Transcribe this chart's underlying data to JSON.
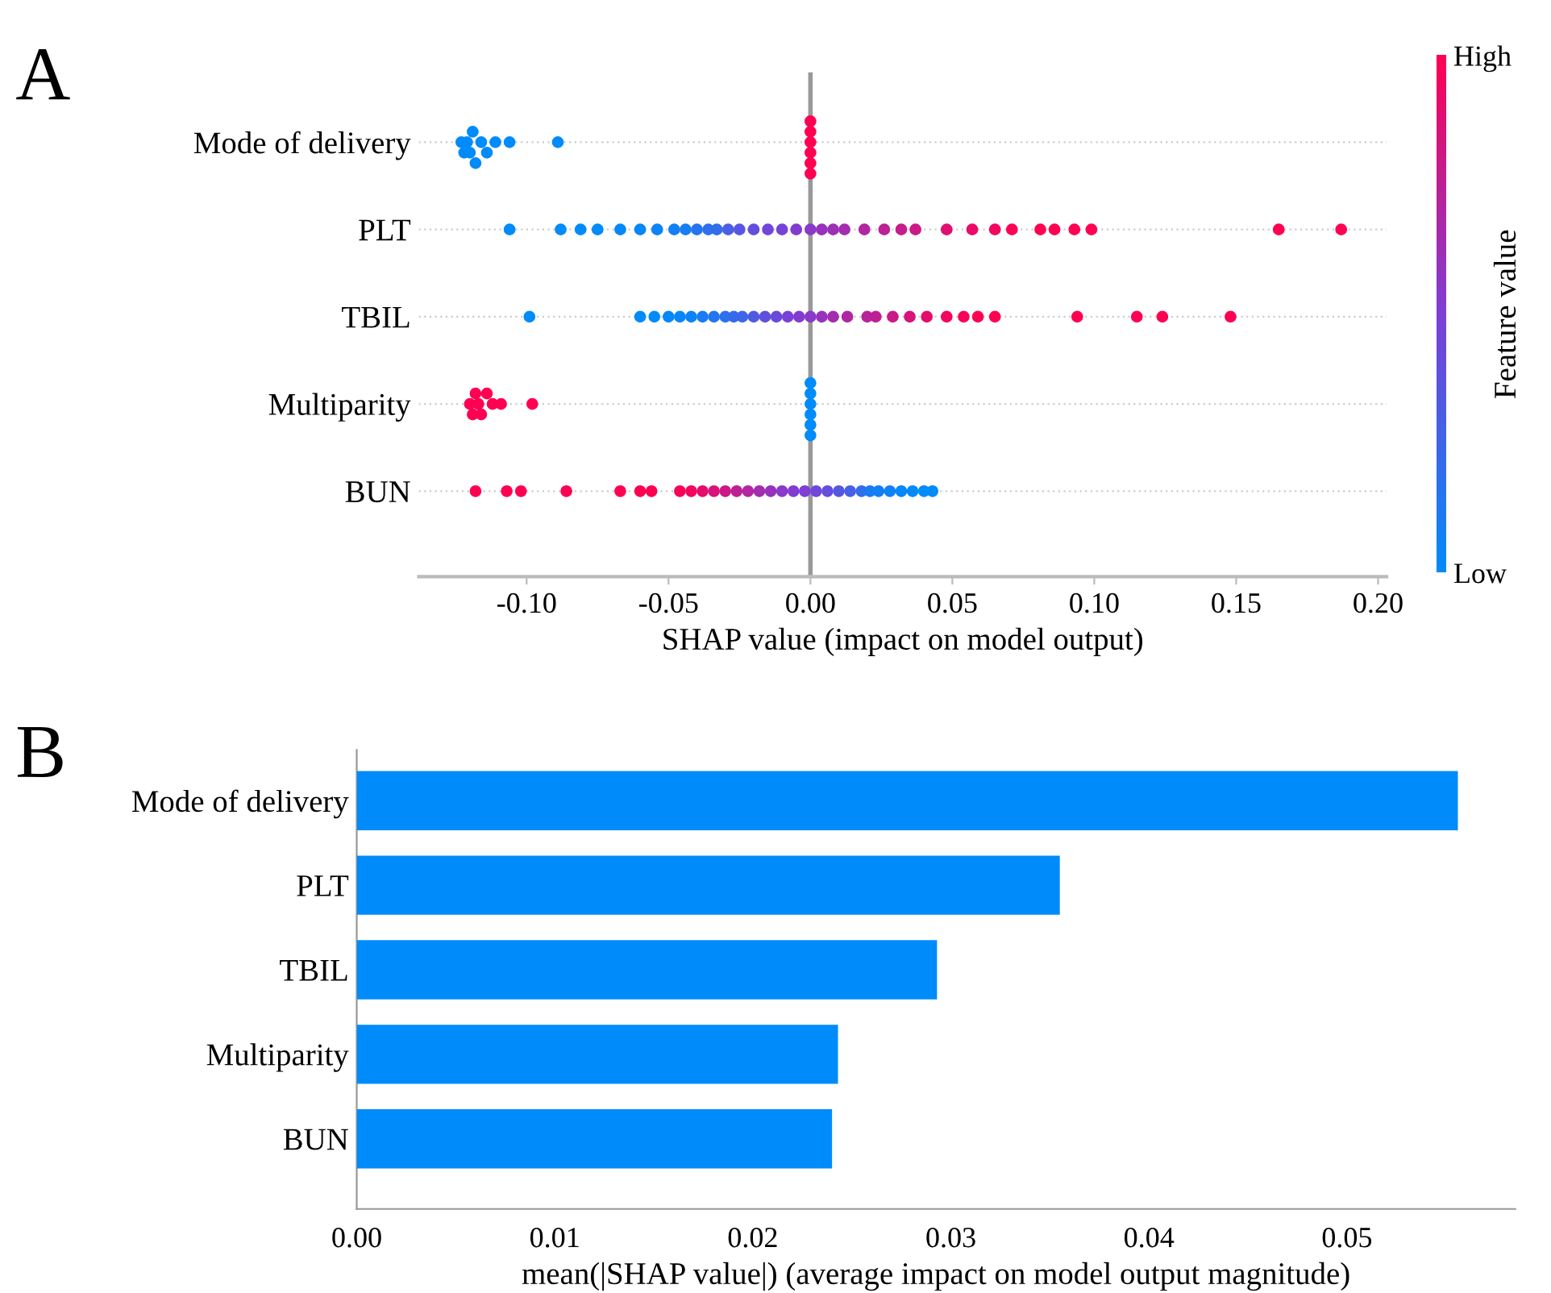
{
  "chart_data": [
    {
      "type": "scatter",
      "title": "A",
      "orientation": "horizontal",
      "xlabel": "SHAP value (impact on model output)",
      "clabel": "Feature value",
      "clim": [
        0,
        1
      ],
      "cticks": [
        {
          "value": 0,
          "label": "Low"
        },
        {
          "value": 1,
          "label": "High"
        }
      ],
      "grid": "y",
      "xlim": [
        -0.138,
        0.203
      ],
      "xticks": [
        {
          "value": -0.1,
          "label": "-0.10"
        },
        {
          "value": -0.05,
          "label": "-0.05"
        },
        {
          "value": 0,
          "label": "0.00"
        },
        {
          "value": 0.05,
          "label": "0.05"
        },
        {
          "value": 0.1,
          "label": "0.10"
        },
        {
          "value": 0.15,
          "label": "0.15"
        },
        {
          "value": 0.2,
          "label": "0.20"
        }
      ],
      "ref_lines": [
        {
          "axis": "x",
          "value": 0,
          "color": "#999999"
        }
      ],
      "categories": [
        "Mode of delivery",
        "PLT",
        "TBIL",
        "Multiparity",
        "BUN"
      ],
      "series": [
        {
          "values": [
            -0.123,
            -0.106,
            -0.099,
            -0.12,
            -0.118
          ],
          "cvalues": [
            0,
            0,
            0,
            1,
            1
          ],
          "colors": [
            "#008bfb",
            "#008bfb",
            "#008bfb",
            "#ff0052",
            "#ff0052"
          ]
        },
        {
          "values": [
            -0.122,
            -0.088,
            -0.06,
            -0.119,
            -0.107
          ],
          "cvalues": [
            0,
            0,
            0,
            1,
            1
          ],
          "colors": [
            "#008bfb",
            "#008bfb",
            "#008bfb",
            "#ff0052",
            "#ff0052"
          ]
        },
        {
          "values": [
            -0.121,
            -0.081,
            -0.055,
            -0.118,
            -0.102
          ],
          "cvalues": [
            0,
            0,
            0,
            1,
            1
          ],
          "colors": [
            "#008bfb",
            "#008bfb",
            "#008bfb",
            "#ff0052",
            "#ff0052"
          ]
        },
        {
          "values": [
            -0.12,
            -0.075,
            -0.05,
            -0.117,
            -0.086
          ],
          "cvalues": [
            0,
            0,
            0.02,
            1,
            1
          ],
          "colors": [
            "#008bfb",
            "#008bfb",
            "#0588fa",
            "#ff0052",
            "#ff0052"
          ]
        },
        {
          "values": [
            -0.119,
            -0.067,
            -0.046,
            -0.116,
            -0.067
          ],
          "cvalues": [
            0,
            0.02,
            0.03,
            1,
            1
          ],
          "colors": [
            "#008bfb",
            "#0588fa",
            "#0886f9",
            "#ff0052",
            "#ff0052"
          ]
        },
        {
          "values": [
            -0.118,
            -0.06,
            -0.042,
            -0.114,
            -0.06
          ],
          "cvalues": [
            0,
            0.03,
            0.05,
            1,
            1
          ],
          "colors": [
            "#008bfb",
            "#0886f9",
            "#0d83f7",
            "#ff0052",
            "#ff0052"
          ]
        },
        {
          "values": [
            -0.116,
            -0.054,
            -0.038,
            -0.112,
            -0.056
          ],
          "cvalues": [
            0,
            0.05,
            0.1,
            1,
            1
          ],
          "colors": [
            "#008bfb",
            "#0d83f7",
            "#197cf4",
            "#ff0052",
            "#ff0052"
          ]
        },
        {
          "values": [
            -0.114,
            -0.048,
            -0.034,
            -0.109,
            -0.046
          ],
          "cvalues": [
            0,
            0.08,
            0.15,
            1,
            0.98
          ],
          "colors": [
            "#008bfb",
            "#147ff5",
            "#2674f0",
            "#ff0052",
            "#fa0357"
          ]
        },
        {
          "values": [
            -0.111,
            -0.044,
            -0.03,
            -0.098,
            -0.042
          ],
          "cvalues": [
            0,
            0.1,
            0.18,
            1,
            0.95
          ],
          "colors": [
            "#008bfb",
            "#197cf4",
            "#2d70ee",
            "#ff0052",
            "#f2065f"
          ]
        },
        {
          "values": [
            -0.106,
            -0.04,
            -0.027,
            0,
            -0.038
          ],
          "cvalues": [
            0,
            0.15,
            0.22,
            0,
            0.9
          ],
          "colors": [
            "#008bfb",
            "#2674f0",
            "#376aeb",
            "#008bfb",
            "#e50d6c"
          ]
        },
        {
          "values": [
            -0.089,
            -0.036,
            -0.024,
            0,
            -0.034
          ],
          "cvalues": [
            0,
            0.18,
            0.25,
            0,
            0.85
          ],
          "colors": [
            "#008bfb",
            "#2d70ee",
            "#3f65e9",
            "#008bfb",
            "#d8137a"
          ]
        },
        {
          "values": [
            0,
            -0.033,
            -0.02,
            0,
            -0.03
          ],
          "cvalues": [
            1,
            0.2,
            0.32,
            0,
            0.8
          ],
          "colors": [
            "#ff0052",
            "#326dec",
            "#505ae3",
            "#008bfb",
            "#cb1987"
          ]
        },
        {
          "values": [
            0,
            -0.029,
            -0.016,
            0,
            -0.026
          ],
          "cvalues": [
            1,
            0.3,
            0.38,
            0,
            0.75
          ],
          "colors": [
            "#ff0052",
            "#4b5de5",
            "#5f51df",
            "#008bfb",
            "#be2094"
          ]
        },
        {
          "values": [
            0,
            -0.025,
            -0.012,
            0,
            -0.022
          ],
          "cvalues": [
            1,
            0.35,
            0.42,
            0,
            0.7
          ],
          "colors": [
            "#ff0052",
            "#5856e1",
            "#694bdc",
            "#008bfb",
            "#b126a1"
          ]
        },
        {
          "values": [
            0,
            -0.02,
            -0.008,
            0,
            -0.018
          ],
          "cvalues": [
            1,
            0.4,
            0.48,
            0,
            0.65
          ],
          "colors": [
            "#ff0052",
            "#644edd",
            "#7842d8",
            "#008bfb",
            "#a42cae"
          ]
        },
        {
          "values": [
            0,
            -0.015,
            -0.004,
            null,
            -0.014
          ],
          "cvalues": [
            1,
            0.45,
            0.52,
            null,
            0.6
          ],
          "colors": [
            "#ff0052",
            "#7147da",
            "#823dd1",
            null,
            "#9732bc"
          ]
        },
        {
          "values": [
            0,
            -0.01,
            0,
            null,
            -0.01
          ],
          "cvalues": [
            1,
            0.48,
            0.55,
            null,
            0.55
          ],
          "colors": [
            "#ff0052",
            "#7842d8",
            "#8a39c9",
            null,
            "#8a39c9"
          ]
        },
        {
          "values": [
            null,
            -0.005,
            0.004,
            null,
            -0.006
          ],
          "cvalues": [
            null,
            0.52,
            0.6,
            null,
            0.52
          ],
          "colors": [
            null,
            "#823dd1",
            "#9732bc",
            null,
            "#823dd1"
          ]
        },
        {
          "values": [
            null,
            0,
            0.008,
            null,
            -0.002
          ],
          "cvalues": [
            null,
            0.55,
            0.65,
            null,
            0.5
          ],
          "colors": [
            null,
            "#8a39c9",
            "#a42cae",
            null,
            "#7d3fd6"
          ]
        },
        {
          "values": [
            null,
            0.004,
            0.013,
            null,
            0.002
          ],
          "cvalues": [
            null,
            0.6,
            0.7,
            null,
            0.45
          ],
          "colors": [
            null,
            "#9732bc",
            "#b126a1",
            null,
            "#7147da"
          ]
        },
        {
          "values": [
            null,
            0.008,
            0.02,
            null,
            0.006
          ],
          "cvalues": [
            null,
            0.62,
            0.72,
            null,
            0.4
          ],
          "colors": [
            null,
            "#9c30b6",
            "#b6239c",
            null,
            "#644edd"
          ]
        },
        {
          "values": [
            null,
            0.012,
            0.023,
            null,
            0.01
          ],
          "cvalues": [
            null,
            0.65,
            0.75,
            null,
            0.35
          ],
          "colors": [
            null,
            "#a42cae",
            "#be2094",
            null,
            "#5856e1"
          ]
        },
        {
          "values": [
            null,
            0.019,
            0.029,
            null,
            0.014
          ],
          "cvalues": [
            null,
            0.7,
            0.8,
            null,
            0.28
          ],
          "colors": [
            null,
            "#b126a1",
            "#cb1987",
            null,
            "#4660e6"
          ]
        },
        {
          "values": [
            null,
            0.026,
            0.035,
            null,
            0.018
          ],
          "cvalues": [
            null,
            0.74,
            0.85,
            null,
            0.2
          ],
          "colors": [
            null,
            "#bb2197",
            "#d8137a",
            null,
            "#326dec"
          ]
        },
        {
          "values": [
            null,
            0.032,
            0.041,
            null,
            0.021
          ],
          "cvalues": [
            null,
            0.78,
            0.9,
            null,
            0.1
          ],
          "colors": [
            null,
            "#c61c8c",
            "#e50d6c",
            null,
            "#197cf4"
          ]
        },
        {
          "values": [
            null,
            0.037,
            0.048,
            null,
            0.024
          ],
          "cvalues": [
            null,
            0.8,
            0.95,
            null,
            0.08
          ],
          "colors": [
            null,
            "#cb1987",
            "#f2065f",
            null,
            "#147ff5"
          ]
        },
        {
          "values": [
            null,
            0.048,
            0.054,
            null,
            0.028
          ],
          "cvalues": [
            null,
            0.88,
            0.97,
            null,
            0.05
          ],
          "colors": [
            null,
            "#e00f72",
            "#f7045a",
            null,
            "#0d83f7"
          ]
        },
        {
          "values": [
            null,
            0.057,
            0.059,
            null,
            0.032
          ],
          "cvalues": [
            null,
            0.92,
            1,
            null,
            0.02
          ],
          "colors": [
            null,
            "#ea0a67",
            "#ff0052",
            null,
            "#0588fa"
          ]
        },
        {
          "values": [
            null,
            0.065,
            0.065,
            null,
            0.036
          ],
          "cvalues": [
            null,
            0.95,
            1,
            null,
            0
          ],
          "colors": [
            null,
            "#f2065f",
            "#ff0052",
            null,
            "#008bfb"
          ]
        },
        {
          "values": [
            null,
            0.071,
            0.094,
            null,
            0.04
          ],
          "cvalues": [
            null,
            0.98,
            1,
            null,
            0
          ],
          "colors": [
            null,
            "#fa0357",
            "#ff0052",
            null,
            "#008bfb"
          ]
        },
        {
          "values": [
            null,
            0.081,
            0.115,
            null,
            0.043
          ],
          "cvalues": [
            null,
            1,
            1,
            null,
            0
          ],
          "colors": [
            null,
            "#ff0052",
            "#ff0052",
            null,
            "#008bfb"
          ]
        },
        {
          "values": [
            null,
            0.086,
            0.124,
            null,
            null
          ],
          "cvalues": [
            null,
            1,
            1,
            null,
            null
          ],
          "colors": [
            null,
            "#ff0052",
            "#ff0052",
            null,
            null
          ]
        },
        {
          "values": [
            null,
            0.093,
            0.148,
            null,
            null
          ],
          "cvalues": [
            null,
            1,
            1,
            null,
            null
          ],
          "colors": [
            null,
            "#ff0052",
            "#ff0052",
            null,
            null
          ]
        },
        {
          "values": [
            null,
            0.099,
            null,
            null,
            null
          ],
          "cvalues": [
            null,
            1,
            null,
            null,
            null
          ],
          "colors": [
            null,
            "#ff0052",
            null,
            null,
            null
          ]
        },
        {
          "values": [
            null,
            0.165,
            null,
            null,
            null
          ],
          "cvalues": [
            null,
            1,
            null,
            null,
            null
          ],
          "colors": [
            null,
            "#ff0052",
            null,
            null,
            null
          ]
        },
        {
          "values": [
            null,
            0.187,
            null,
            null,
            null
          ],
          "cvalues": [
            null,
            1,
            null,
            null,
            null
          ],
          "colors": [
            null,
            "#ff0052",
            null,
            null,
            null
          ]
        }
      ]
    },
    {
      "type": "bar",
      "title": "B",
      "orientation": "horizontal",
      "xlabel": "mean(|SHAP value|) (average impact on model output magnitude)",
      "categories": [
        "Mode of delivery",
        "PLT",
        "TBIL",
        "Multiparity",
        "BUN"
      ],
      "values": [
        0.0556,
        0.0355,
        0.0293,
        0.0243,
        0.024
      ],
      "color": "#008bfb",
      "xlim": [
        0,
        0.0585
      ],
      "xticks": [
        {
          "value": 0,
          "label": "0.00"
        },
        {
          "value": 0.01,
          "label": "0.01"
        },
        {
          "value": 0.02,
          "label": "0.02"
        },
        {
          "value": 0.03,
          "label": "0.03"
        },
        {
          "value": 0.04,
          "label": "0.04"
        },
        {
          "value": 0.05,
          "label": "0.05"
        }
      ]
    }
  ]
}
